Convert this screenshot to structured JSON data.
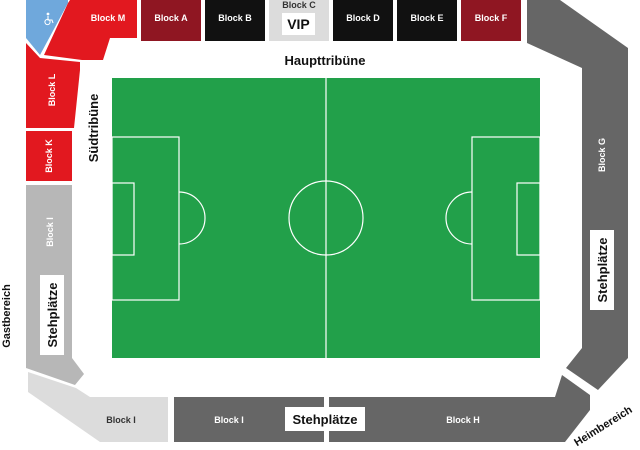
{
  "colors": {
    "red": "#e2181f",
    "dark_red": "#8f1622",
    "black": "#111111",
    "dark_gray": "#666666",
    "light_gray": "#b7b7b7",
    "pale_gray": "#dcdcdc",
    "blue": "#6fa8dc",
    "pitch_green": "#22a04a"
  },
  "icons": {
    "wheelchair": "wheelchair-icon"
  },
  "stands": {
    "top": "Haupttribüne",
    "left": "Südtribüne",
    "bottom_left_corner": "Gastbereich",
    "bottom_right_corner": "Heimbereich"
  },
  "blocks": {
    "m": "Block M",
    "a": "Block A",
    "b": "Block B",
    "c": "Block C",
    "c_tag": "VIP",
    "d": "Block D",
    "e": "Block E",
    "f": "Block F",
    "l": "Block L",
    "k": "Block K",
    "i_left": "Block I",
    "i_corner": "Block I",
    "i_bottom": "Block I",
    "g": "Block G",
    "h": "Block H"
  },
  "tags": {
    "standing_left": "Stehplätze",
    "standing_right": "Stehplätze",
    "standing_bottom": "Stehplätze"
  }
}
